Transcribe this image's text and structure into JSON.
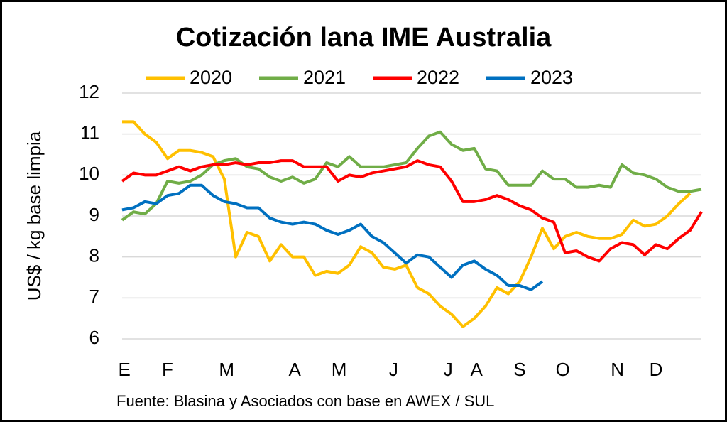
{
  "chart_data": {
    "type": "line",
    "title": "Cotización lana IME Australia",
    "y_label": "US$ / kg base limpia",
    "source": "Fuente: Blasina y Asociados con base en AWEX / SUL",
    "x": [
      1,
      2,
      3,
      4,
      5,
      6,
      7,
      8,
      9,
      10,
      11,
      12,
      13,
      14,
      15,
      16,
      17,
      18,
      19,
      20,
      21,
      22,
      23,
      24,
      25,
      26,
      27,
      28,
      29,
      30,
      31,
      32,
      33,
      34,
      35,
      36,
      37,
      38,
      39,
      40,
      41,
      42,
      43,
      44,
      45,
      46,
      47,
      48,
      49,
      50,
      51,
      52
    ],
    "xlim": [
      1,
      52
    ],
    "xticks": [
      {
        "value": 1.2,
        "label": "E"
      },
      {
        "value": 5,
        "label": "F"
      },
      {
        "value": 10.2,
        "label": "M"
      },
      {
        "value": 16.2,
        "label": "A"
      },
      {
        "value": 20.1,
        "label": "M"
      },
      {
        "value": 24.9,
        "label": "J"
      },
      {
        "value": 29.7,
        "label": "J"
      },
      {
        "value": 32.2,
        "label": "A"
      },
      {
        "value": 36,
        "label": "S"
      },
      {
        "value": 39.8,
        "label": "O"
      },
      {
        "value": 44.6,
        "label": "N"
      },
      {
        "value": 48,
        "label": "D"
      }
    ],
    "ylim": [
      6,
      12
    ],
    "yticks": [
      6,
      7,
      8,
      9,
      10,
      11,
      12
    ],
    "grid": true,
    "series": [
      {
        "name": "2020",
        "color": "#ffc000",
        "values": [
          11.3,
          11.3,
          11.0,
          10.8,
          10.4,
          10.6,
          10.6,
          10.55,
          10.45,
          9.9,
          8.0,
          8.6,
          8.5,
          7.9,
          8.3,
          8.0,
          8.0,
          7.55,
          7.65,
          7.6,
          7.8,
          8.25,
          8.1,
          7.75,
          7.7,
          7.8,
          7.25,
          7.1,
          6.8,
          6.6,
          6.3,
          6.5,
          6.8,
          7.25,
          7.1,
          7.4,
          8.0,
          8.7,
          8.2,
          8.5,
          8.6,
          8.5,
          8.45,
          8.45,
          8.55,
          8.9,
          8.75,
          8.8,
          9.0,
          9.3,
          9.55,
          null
        ]
      },
      {
        "name": "2021",
        "color": "#70ad47",
        "values": [
          8.9,
          9.1,
          9.05,
          9.3,
          9.85,
          9.8,
          9.85,
          10.0,
          10.25,
          10.35,
          10.4,
          10.2,
          10.15,
          9.95,
          9.85,
          9.95,
          9.8,
          9.9,
          10.3,
          10.2,
          10.45,
          10.2,
          10.2,
          10.2,
          10.25,
          10.3,
          10.65,
          10.95,
          11.05,
          10.75,
          10.6,
          10.65,
          10.15,
          10.1,
          9.75,
          9.75,
          9.75,
          10.1,
          9.9,
          9.9,
          9.7,
          9.7,
          9.75,
          9.7,
          10.25,
          10.05,
          10.0,
          9.9,
          9.7,
          9.6,
          9.6,
          9.65
        ]
      },
      {
        "name": "2022",
        "color": "#ff0000",
        "values": [
          9.85,
          10.05,
          10.0,
          10.0,
          10.1,
          10.2,
          10.1,
          10.2,
          10.25,
          10.25,
          10.3,
          10.25,
          10.3,
          10.3,
          10.35,
          10.35,
          10.2,
          10.2,
          10.2,
          9.85,
          10.0,
          9.95,
          10.05,
          10.1,
          10.15,
          10.2,
          10.35,
          10.25,
          10.2,
          9.85,
          9.35,
          9.35,
          9.4,
          9.5,
          9.4,
          9.25,
          9.15,
          8.95,
          8.85,
          8.1,
          8.15,
          8.0,
          7.9,
          8.2,
          8.35,
          8.3,
          8.05,
          8.3,
          8.2,
          8.45,
          8.65,
          9.1
        ]
      },
      {
        "name": "2023",
        "color": "#0070c0",
        "values": [
          9.15,
          9.2,
          9.35,
          9.3,
          9.5,
          9.55,
          9.75,
          9.75,
          9.5,
          9.35,
          9.3,
          9.2,
          9.2,
          8.95,
          8.85,
          8.8,
          8.85,
          8.8,
          8.65,
          8.55,
          8.65,
          8.8,
          8.5,
          8.35,
          8.1,
          7.85,
          8.05,
          8.0,
          7.75,
          7.5,
          7.8,
          7.9,
          7.7,
          7.55,
          7.3,
          7.3,
          7.2,
          7.4,
          null,
          null,
          null,
          null,
          null,
          null,
          null,
          null,
          null,
          null,
          null,
          null,
          null,
          null
        ]
      }
    ]
  }
}
